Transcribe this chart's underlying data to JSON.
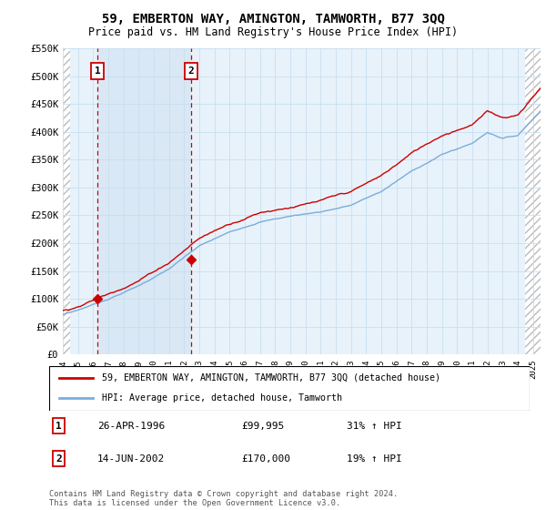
{
  "title": "59, EMBERTON WAY, AMINGTON, TAMWORTH, B77 3QQ",
  "subtitle": "Price paid vs. HM Land Registry's House Price Index (HPI)",
  "ylim": [
    0,
    550000
  ],
  "yticks": [
    0,
    50000,
    100000,
    150000,
    200000,
    250000,
    300000,
    350000,
    400000,
    450000,
    500000,
    550000
  ],
  "ytick_labels": [
    "£0",
    "£50K",
    "£100K",
    "£150K",
    "£200K",
    "£250K",
    "£300K",
    "£350K",
    "£400K",
    "£450K",
    "£500K",
    "£550K"
  ],
  "sale1_year": 1996.29,
  "sale1_price": 99995,
  "sale2_year": 2002.46,
  "sale2_price": 170000,
  "hpi_color": "#7aaddb",
  "price_color": "#cc0000",
  "legend_entry1": "59, EMBERTON WAY, AMINGTON, TAMWORTH, B77 3QQ (detached house)",
  "legend_entry2": "HPI: Average price, detached house, Tamworth",
  "table_row1": [
    "1",
    "26-APR-1996",
    "£99,995",
    "31% ↑ HPI"
  ],
  "table_row2": [
    "2",
    "14-JUN-2002",
    "£170,000",
    "19% ↑ HPI"
  ],
  "footnote": "Contains HM Land Registry data © Crown copyright and database right 2024.\nThis data is licensed under the Open Government Licence v3.0.",
  "grid_color": "#c8dff0",
  "plot_bg": "#e8f2fa",
  "hatch_bg": "#e8e8e8",
  "shade_color": "#cce0f0",
  "xmin": 1994,
  "xmax": 2025.5,
  "hatch_right_start": 2024.5
}
